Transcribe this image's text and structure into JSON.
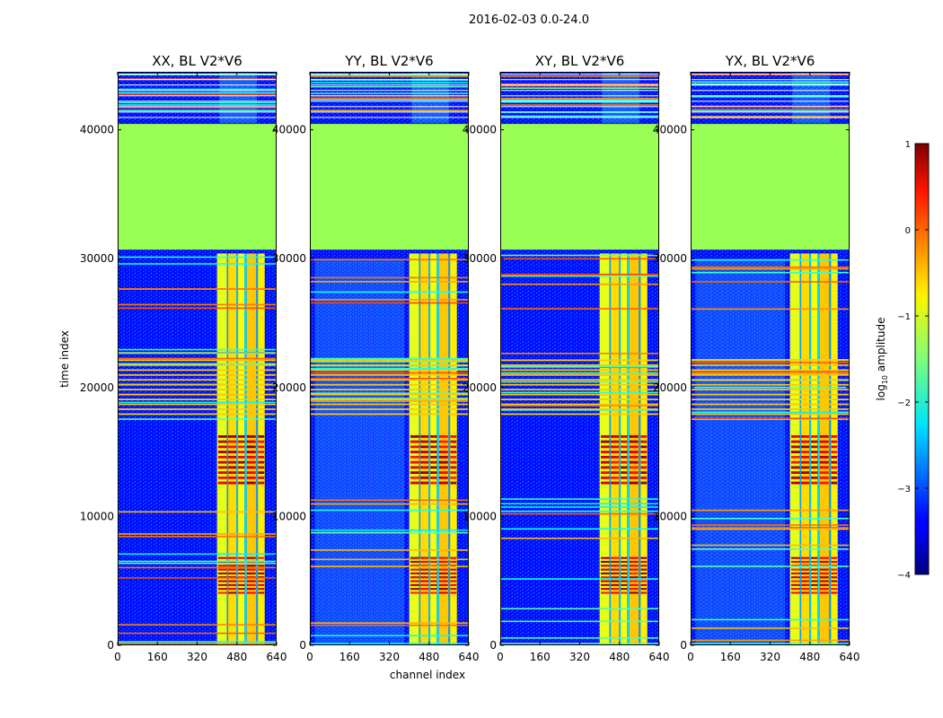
{
  "chart_data": {
    "type": "heatmap",
    "suptitle": "2016-02-03 0.0-24.0",
    "panels": [
      {
        "title": "XX, BL V2*V6"
      },
      {
        "title": "YY, BL V2*V6"
      },
      {
        "title": "XY, BL V2*V6"
      },
      {
        "title": "YX, BL V2*V6"
      }
    ],
    "xlabel": "channel index",
    "ylabel": "time index",
    "xlim": [
      0,
      640
    ],
    "ylim": [
      0,
      44500
    ],
    "xticks": [
      0,
      160,
      320,
      480,
      640
    ],
    "yticks": [
      0,
      10000,
      20000,
      30000,
      40000
    ],
    "colorbar": {
      "label": "log10 amplitude",
      "label_main": "log",
      "label_sub": "10",
      "label_rest": " amplitude",
      "range": [
        -4,
        1
      ],
      "ticks": [
        "1",
        "0",
        "−1",
        "−2",
        "−3",
        "−4"
      ],
      "tick_values": [
        1,
        0,
        -1,
        -2,
        -3,
        -4
      ],
      "colormap": "jet"
    },
    "features": {
      "flagged_block_time_range": [
        30700,
        40500
      ],
      "flagged_block_level": -0.8,
      "bright_channel_range": [
        400,
        600
      ],
      "background_level": -3.3
    }
  }
}
